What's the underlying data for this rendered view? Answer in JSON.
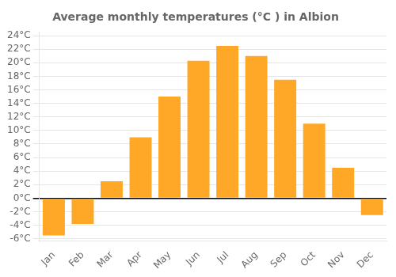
{
  "chart_data": {
    "type": "bar",
    "title": "Average monthly temperatures (°C ) in Albion",
    "categories": [
      "Jan",
      "Feb",
      "Mar",
      "Apr",
      "May",
      "Jun",
      "Jul",
      "Aug",
      "Sep",
      "Oct",
      "Nov",
      "Dec"
    ],
    "values": [
      -5.5,
      -3.8,
      2.5,
      9.0,
      15.0,
      20.3,
      22.5,
      21.0,
      17.5,
      11.0,
      4.5,
      -2.5
    ],
    "color": "#FFA726",
    "ylim": [
      -6.3,
      24.5
    ],
    "yticks": [
      {
        "value": -6,
        "label": "-6°C"
      },
      {
        "value": -4,
        "label": "-4°C"
      },
      {
        "value": -2,
        "label": "-2°C"
      },
      {
        "value": 0,
        "label": "0°C"
      },
      {
        "value": 2,
        "label": "2°C"
      },
      {
        "value": 4,
        "label": "4°C"
      },
      {
        "value": 6,
        "label": "6°C"
      },
      {
        "value": 8,
        "label": "8°C"
      },
      {
        "value": 10,
        "label": "10°C"
      },
      {
        "value": 12,
        "label": "12°C"
      },
      {
        "value": 14,
        "label": "14°C"
      },
      {
        "value": 16,
        "label": "16°C"
      },
      {
        "value": 18,
        "label": "18°C"
      },
      {
        "value": 20,
        "label": "20°C"
      },
      {
        "value": 22,
        "label": "22°C"
      },
      {
        "value": 24,
        "label": "24°C"
      }
    ],
    "grid": true
  }
}
